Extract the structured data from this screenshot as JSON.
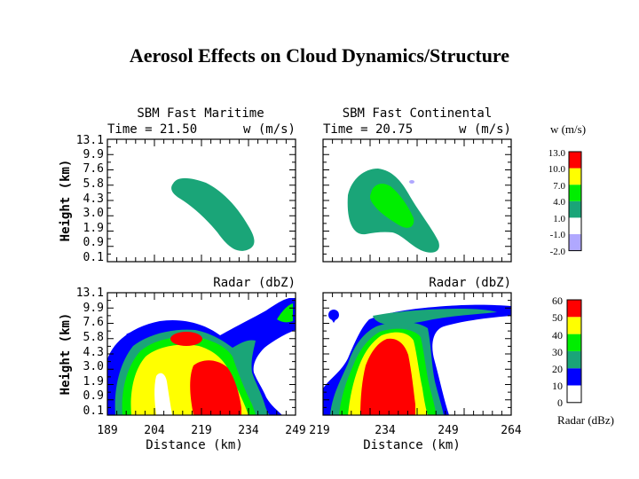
{
  "title": "Aerosol Effects on Cloud Dynamics/Structure",
  "colors": {
    "w_cb": [
      "#b0a8ff",
      "#ffffff",
      "#1aa578",
      "#00ee00",
      "#ffff00",
      "#ff0000"
    ],
    "radar_cb": [
      "#ffffff",
      "#0000ff",
      "#1aa578",
      "#00ee00",
      "#ffff00",
      "#ff0000"
    ]
  },
  "chart_data": [
    {
      "type": "contour",
      "panel": "maritime-w",
      "title": "SBM Fast Maritime",
      "time_label": "Time = 21.50",
      "var_label": "w (m/s)",
      "ylabel": "Height (km)",
      "yticks": [
        "13.1",
        "9.9",
        "7.6",
        "5.8",
        "4.3",
        "3.0",
        "1.9",
        "0.9",
        "0.1"
      ],
      "filled_levels": [
        {
          "range": "1.0-4.0",
          "color": "#1aa578"
        }
      ]
    },
    {
      "type": "contour",
      "panel": "continental-w",
      "title": "SBM Fast Continental",
      "time_label": "Time = 20.75",
      "var_label": "w (m/s)",
      "filled_levels": [
        {
          "range": "1.0-4.0",
          "color": "#1aa578"
        },
        {
          "range": "4.0-7.0",
          "color": "#00ee00"
        },
        {
          "range": "-2.0--1.0",
          "color": "#b0a8ff"
        }
      ]
    },
    {
      "type": "contour",
      "panel": "maritime-radar",
      "var_label": "Radar (dbZ)",
      "ylabel": "Height (km)",
      "xlabel": "Distance (km)",
      "yticks": [
        "13.1",
        "9.9",
        "7.6",
        "5.8",
        "4.3",
        "3.0",
        "1.9",
        "0.9",
        "0.1"
      ],
      "xticks": [
        "189",
        "204",
        "219",
        "234",
        "249"
      ],
      "xlim": [
        189,
        249
      ],
      "filled_levels": [
        "10-20 blue",
        "20-30 teal",
        "30-40 green",
        "40-50 yellow",
        "50-60 red"
      ]
    },
    {
      "type": "contour",
      "panel": "continental-radar",
      "var_label": "Radar (dbZ)",
      "xlabel": "Distance (km)",
      "xticks": [
        "219",
        "234",
        "249",
        "264"
      ],
      "xlim": [
        219,
        264
      ],
      "filled_levels": [
        "10-20 blue",
        "20-30 teal",
        "30-40 green",
        "40-50 yellow",
        "50-60 red"
      ]
    },
    {
      "type": "colorbar",
      "panel": "w-colorbar",
      "label": "w (m/s)",
      "tick_labels": [
        "13.0",
        "10.0",
        "7.0",
        "4.0",
        "1.0",
        "-1.0",
        "-2.0"
      ]
    },
    {
      "type": "colorbar",
      "panel": "radar-colorbar",
      "label": "Radar (dBz)",
      "tick_labels": [
        "60",
        "50",
        "40",
        "30",
        "20",
        "10",
        "0"
      ]
    }
  ]
}
